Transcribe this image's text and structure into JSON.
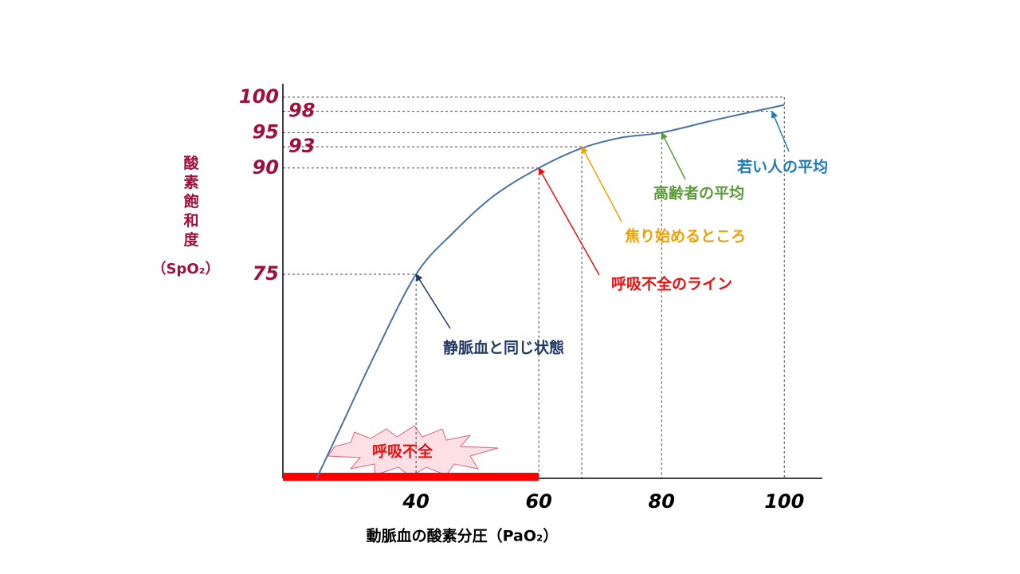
{
  "chart_data": {
    "type": "line",
    "x_label": "動脈血の酸素分圧（PaO₂）",
    "y_label": "酸素飽和度",
    "y_label_sub": "（SpO₂）",
    "x": [
      23.8,
      28.1,
      33.3,
      40,
      46.2,
      52.7,
      60,
      67,
      73.5,
      80,
      89.3,
      100
    ],
    "series": [
      {
        "name": "SpO₂",
        "color": "#4a72a8",
        "values": [
          46.2,
          54.1,
          63.7,
          75,
          81,
          86.1,
          90,
          92.8,
          94.3,
          95,
          96.9,
          98.9
        ]
      }
    ],
    "xlim": [
      18.3,
      106.2
    ],
    "ylim": [
      46.2,
      101.9
    ],
    "xticks": [
      40,
      60,
      80,
      100
    ],
    "yticks": [
      100,
      98,
      95,
      93,
      90,
      75
    ],
    "guides": [
      [
        40,
        75
      ],
      [
        60,
        90
      ],
      [
        67,
        93
      ],
      [
        80,
        95
      ],
      [
        98,
        98
      ],
      [
        100,
        100
      ]
    ],
    "failure_range": [
      18.3,
      60
    ],
    "failure_label": "呼吸不全",
    "annotations": [
      {
        "text": "静脈血と同じ状態",
        "color": "#1f3864",
        "target": [
          40,
          75
        ]
      },
      {
        "text": "呼吸不全のライン",
        "color": "#e81010",
        "target": [
          60,
          90
        ]
      },
      {
        "text": "焦り始めるところ",
        "color": "#f0a000",
        "target": [
          67,
          93
        ]
      },
      {
        "text": "高齢者の平均",
        "color": "#5b9b3a",
        "target": [
          80,
          95
        ]
      },
      {
        "text": "若い人の平均",
        "color": "#1f7bbf",
        "target": [
          98,
          98
        ]
      }
    ]
  }
}
